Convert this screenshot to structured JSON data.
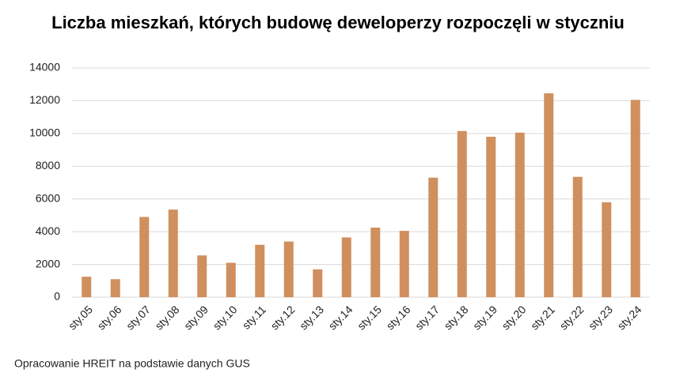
{
  "chart_data": {
    "type": "bar",
    "title": "Liczba mieszkań, których budowę deweloperzy rozpoczęli w styczniu",
    "categories": [
      "sty.05",
      "sty.06",
      "sty.07",
      "sty.08",
      "sty.09",
      "sty.10",
      "sty.11",
      "sty.12",
      "sty.13",
      "sty.14",
      "sty.15",
      "sty.16",
      "sty.17",
      "sty.18",
      "sty.19",
      "sty.20",
      "sty.21",
      "sty.22",
      "sty.23",
      "sty.24"
    ],
    "values": [
      1250,
      1100,
      4900,
      5350,
      2550,
      2100,
      3200,
      3400,
      1700,
      3650,
      4250,
      4050,
      7300,
      10150,
      9800,
      10050,
      12450,
      7350,
      5800,
      12050
    ],
    "color": "#d08f5e",
    "ylim": [
      0,
      14000
    ],
    "yticks": [
      0,
      2000,
      4000,
      6000,
      8000,
      10000,
      12000,
      14000
    ],
    "grid": true,
    "source": "Opracowanie HREIT na podstawie danych GUS"
  }
}
